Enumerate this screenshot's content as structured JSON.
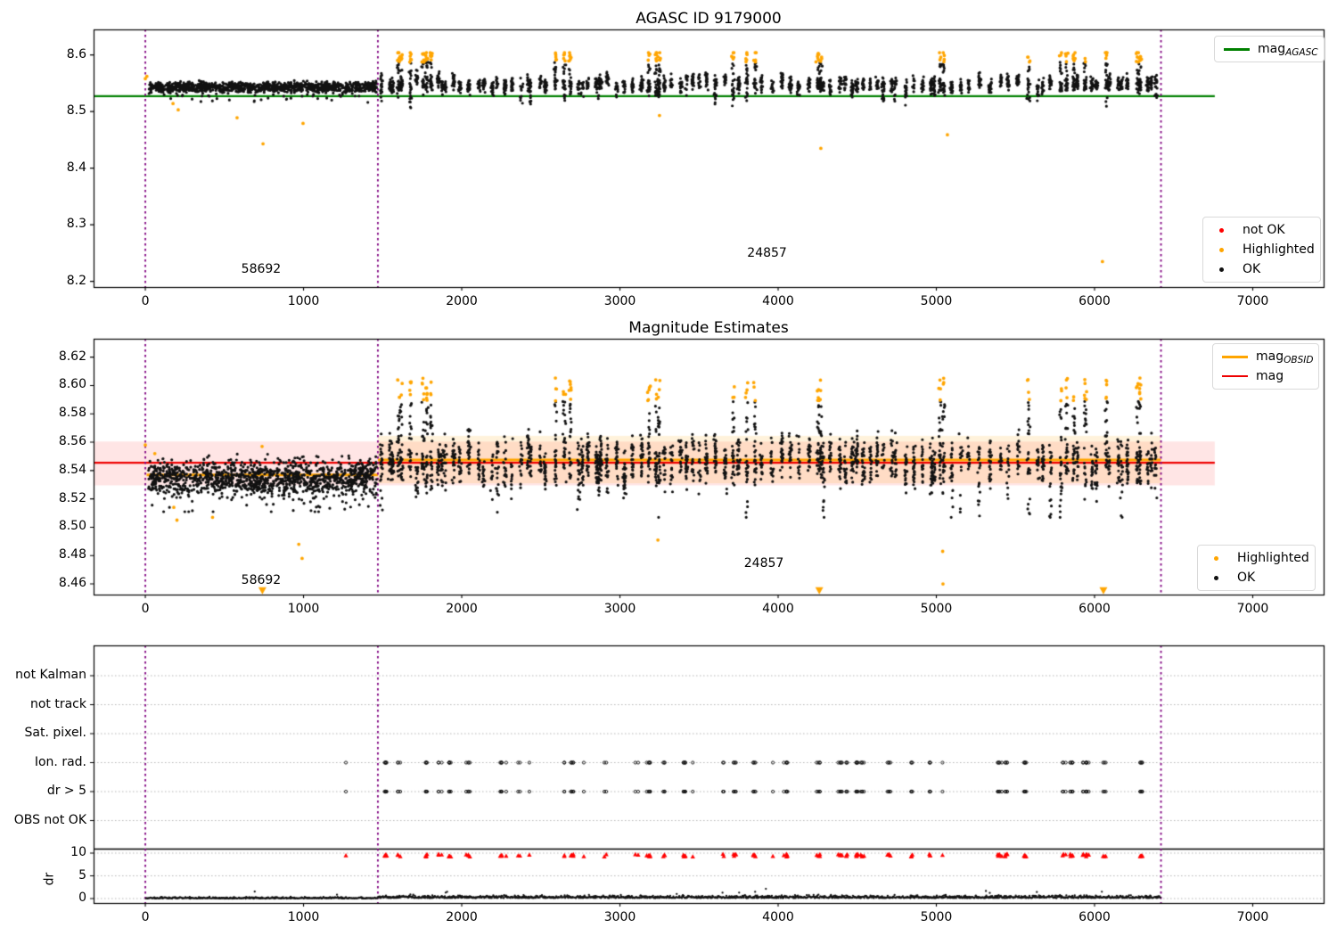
{
  "colors": {
    "ok": "#111111",
    "highlighted": "#ffa500",
    "not_ok": "#ff0000",
    "mag_agasc_line": "#008000",
    "mag_line": "#ee0000",
    "mag_obsid_line": "#ffa500",
    "vline": "#800080",
    "red_band": "rgba(255,0,0,0.10)",
    "orange_band": "rgba(255,165,0,0.14)",
    "grid": "#b5b5b5",
    "spine": "#000000"
  },
  "x_axis": {
    "lim": [
      -327,
      7448
    ],
    "ticks": [
      0,
      1000,
      2000,
      3000,
      4000,
      5000,
      6000,
      7000
    ]
  },
  "vlines": [
    0,
    1470,
    6420
  ],
  "chart_data": [
    {
      "type": "scatter",
      "title": "AGASC ID 9179000",
      "ylim": [
        8.19,
        8.645
      ],
      "ytick_labels": [
        "8.2",
        "8.3",
        "8.4",
        "8.5",
        "8.6"
      ],
      "ytick_vals": [
        8.2,
        8.3,
        8.4,
        8.5,
        8.6
      ],
      "mag_agasc": 8.527,
      "line_xspan": [
        -327,
        6760
      ],
      "annotations": [
        {
          "text": "58692",
          "x": 732,
          "y": 8.222
        },
        {
          "text": "24857",
          "x": 3930,
          "y": 8.25
        }
      ],
      "legend_line": {
        "main": "mag",
        "sub": "AGASC"
      },
      "legend_markers": [
        {
          "label": "not OK",
          "color": "#ff0000"
        },
        {
          "label": "Highlighted",
          "color": "#ffa500"
        },
        {
          "label": "OK",
          "color": "#111111"
        }
      ],
      "orange_outliers": [
        [
          0,
          8.558
        ],
        [
          10,
          8.562
        ],
        [
          175,
          8.514
        ],
        [
          208,
          8.503
        ],
        [
          580,
          8.489
        ],
        [
          744,
          8.443
        ],
        [
          997,
          8.479
        ],
        [
          3250,
          8.493
        ],
        [
          4270,
          8.435
        ],
        [
          5070,
          8.459
        ],
        [
          6050,
          8.235
        ]
      ]
    },
    {
      "type": "scatter",
      "title": "Magnitude Estimates",
      "ylim": [
        8.4525,
        8.633
      ],
      "ytick_labels": [
        "8.46",
        "8.48",
        "8.50",
        "8.52",
        "8.54",
        "8.56",
        "8.58",
        "8.60",
        "8.62"
      ],
      "ytick_vals": [
        8.46,
        8.48,
        8.5,
        8.52,
        8.54,
        8.56,
        8.58,
        8.6,
        8.62
      ],
      "mag": 8.5455,
      "mag_band": [
        8.5295,
        8.5605
      ],
      "band_xspan": [
        -327,
        6760
      ],
      "obsid_segments": [
        {
          "x0": 8,
          "x1": 1470,
          "y": 8.537
        },
        {
          "x0": 1470,
          "x1": 6420,
          "y": 8.5475
        }
      ],
      "obsid_band": {
        "x0": 1470,
        "x1": 6420,
        "y0": 8.531,
        "y1": 8.5645
      },
      "annotations": [
        {
          "text": "58692",
          "x": 732,
          "y": 8.4625
        },
        {
          "text": "24857",
          "x": 3910,
          "y": 8.4745
        }
      ],
      "legend_lines": [
        {
          "main": "mag",
          "sub": "OBSID",
          "color": "#ffa500"
        },
        {
          "main": "mag",
          "sub": "",
          "color": "#ee0000"
        }
      ],
      "legend_markers": [
        {
          "label": "Highlighted",
          "color": "#ffa500"
        },
        {
          "label": "OK",
          "color": "#111111"
        }
      ],
      "orange_outliers": [
        [
          0,
          8.558
        ],
        [
          60,
          8.552
        ],
        [
          180,
          8.514
        ],
        [
          200,
          8.505
        ],
        [
          425,
          8.507
        ],
        [
          738,
          8.557
        ],
        [
          970,
          8.488
        ],
        [
          991,
          8.478
        ],
        [
          3240,
          8.491
        ],
        [
          5040,
          8.483
        ],
        [
          5042,
          8.46
        ]
      ],
      "low_triangles": [
        740,
        4260,
        6056
      ],
      "triangle_y": 8.4555
    },
    {
      "type": "scatter",
      "title": "",
      "categories": [
        "not Kalman",
        "not track",
        "Sat. pixel.",
        "Ion. rad.",
        "dr > 5",
        "OBS not OK"
      ],
      "ylabel": "dr",
      "dr_ticks": [
        10,
        5,
        0
      ],
      "flag_clusters": [
        1280,
        1520,
        1605,
        1780,
        1860,
        1930,
        2040,
        2240,
        2290,
        2370,
        2420,
        2650,
        2700,
        2760,
        2910,
        3110,
        3180,
        3270,
        3400,
        3460,
        3650,
        3720,
        3850,
        3980,
        4050,
        4250,
        4390,
        4440,
        4490,
        4530,
        4700,
        4850,
        4970,
        5050,
        5400,
        5440,
        5560,
        5810,
        5850,
        5930,
        5950,
        6060,
        6290
      ],
      "dr_band_xmax": 6420
    }
  ],
  "scatter_gen": {
    "seed_top": 11,
    "seed_mid": 23,
    "seed_flags": 7,
    "seed_clusters": 3,
    "segmentA": {
      "x0": 20,
      "x1": 1462
    },
    "segmentB": {
      "x0": 1492,
      "x1": 6408
    },
    "highlight_x": [
      1605,
      1650,
      1780,
      2600,
      2660,
      3180,
      3240,
      3700,
      3800,
      3860,
      4250,
      5050,
      5560,
      5800,
      5860,
      5950,
      6060,
      6290
    ],
    "topA": {
      "n": 1150,
      "mean": 8.543,
      "sigma": 0.009
    },
    "midA": {
      "n": 1250,
      "mean": 8.535,
      "sigma": 0.012
    },
    "topB": {
      "mean": 8.548,
      "sigma": 0.013
    },
    "midB": {
      "mean": 8.5455,
      "sigma": 0.016
    }
  }
}
